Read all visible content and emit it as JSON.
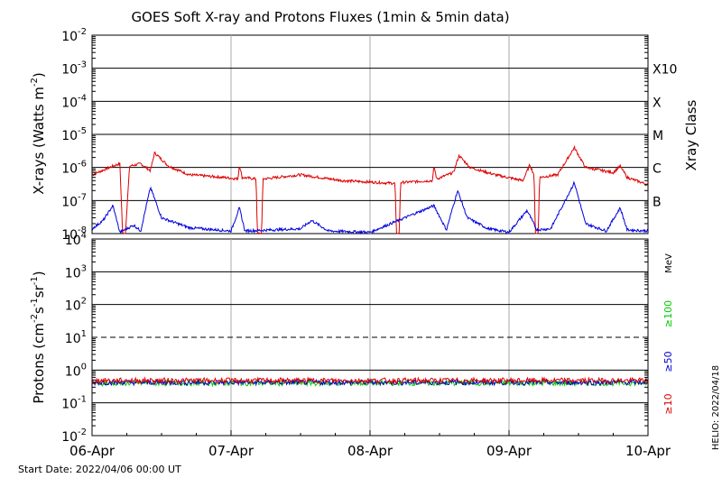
{
  "chart_data": {
    "title": "GOES Soft X-ray and Protons Fluxes   (1min & 5min data)",
    "footer_start": "Start Date: 2022/04/06 00:00 UT",
    "footer_side": "HELIO: 2022/04/18",
    "x_tick_labels": [
      "06-Apr",
      "07-Apr",
      "08-Apr",
      "09-Apr",
      "10-Apr"
    ],
    "xrays": {
      "type": "line",
      "ylabel": "X-rays (Watts m-2)",
      "y_scale": "log",
      "ylim_exponents": [
        -8,
        -2
      ],
      "class_axis_label": "Xray Class",
      "classes": [
        {
          "label": "X10",
          "exp": -3
        },
        {
          "label": "X",
          "exp": -4
        },
        {
          "label": "M",
          "exp": -5
        },
        {
          "label": "C",
          "exp": -6
        },
        {
          "label": "B",
          "exp": -7
        }
      ],
      "series": [
        {
          "color": "#dd0000",
          "points": [
            [
              0,
              6e-07
            ],
            [
              0.15,
              1.1e-06
            ],
            [
              0.2,
              1.3e-06
            ],
            [
              0.22,
              1e-08
            ],
            [
              0.24,
              1e-08
            ],
            [
              0.27,
              1.1e-06
            ],
            [
              0.35,
              1.3e-06
            ],
            [
              0.42,
              8e-07
            ],
            [
              0.45,
              2.8e-06
            ],
            [
              0.55,
              1.1e-06
            ],
            [
              0.7,
              6e-07
            ],
            [
              0.95,
              5e-07
            ],
            [
              1.05,
              4.5e-07
            ],
            [
              1.06,
              1.2e-06
            ],
            [
              1.08,
              5e-07
            ],
            [
              1.18,
              4.5e-07
            ],
            [
              1.19,
              1e-08
            ],
            [
              1.22,
              1e-08
            ],
            [
              1.23,
              4.5e-07
            ],
            [
              1.5,
              6e-07
            ],
            [
              1.8,
              4e-07
            ],
            [
              2.18,
              3.3e-07
            ],
            [
              2.19,
              1e-08
            ],
            [
              2.21,
              1e-08
            ],
            [
              2.22,
              3.5e-07
            ],
            [
              2.45,
              4e-07
            ],
            [
              2.46,
              1.1e-06
            ],
            [
              2.48,
              4.5e-07
            ],
            [
              2.6,
              7e-07
            ],
            [
              2.64,
              2.3e-06
            ],
            [
              2.72,
              1e-06
            ],
            [
              2.9,
              6e-07
            ],
            [
              3.1,
              4e-07
            ],
            [
              3.15,
              1.2e-06
            ],
            [
              3.18,
              6e-07
            ],
            [
              3.19,
              1e-08
            ],
            [
              3.21,
              1e-08
            ],
            [
              3.22,
              5e-07
            ],
            [
              3.35,
              6e-07
            ],
            [
              3.47,
              4e-06
            ],
            [
              3.55,
              1e-06
            ],
            [
              3.75,
              7e-07
            ],
            [
              3.8,
              1.1e-06
            ],
            [
              3.85,
              5e-07
            ],
            [
              4.0,
              3e-07
            ]
          ]
        },
        {
          "color": "#0000dd",
          "points": [
            [
              0,
              1.4e-08
            ],
            [
              0.08,
              2.5e-08
            ],
            [
              0.15,
              7e-08
            ],
            [
              0.2,
              1.1e-08
            ],
            [
              0.3,
              1.8e-08
            ],
            [
              0.35,
              1.2e-08
            ],
            [
              0.42,
              2.5e-07
            ],
            [
              0.5,
              3e-08
            ],
            [
              0.7,
              1.5e-08
            ],
            [
              1.0,
              1.2e-08
            ],
            [
              1.06,
              6e-08
            ],
            [
              1.1,
              1.2e-08
            ],
            [
              1.5,
              1.4e-08
            ],
            [
              1.58,
              2.5e-08
            ],
            [
              1.7,
              1.2e-08
            ],
            [
              2.0,
              1.1e-08
            ],
            [
              2.46,
              7e-08
            ],
            [
              2.55,
              1.3e-08
            ],
            [
              2.63,
              2e-07
            ],
            [
              2.7,
              3e-08
            ],
            [
              2.85,
              1.4e-08
            ],
            [
              3.0,
              1.1e-08
            ],
            [
              3.13,
              5e-08
            ],
            [
              3.2,
              1.3e-08
            ],
            [
              3.3,
              1.4e-08
            ],
            [
              3.47,
              3.5e-07
            ],
            [
              3.55,
              2e-08
            ],
            [
              3.7,
              1.2e-08
            ],
            [
              3.8,
              6e-08
            ],
            [
              3.85,
              1.3e-08
            ],
            [
              4.0,
              1.2e-08
            ]
          ]
        }
      ]
    },
    "protons": {
      "type": "line",
      "ylabel": "Protons (cm-2s-1sr-1)",
      "y_scale": "log",
      "ylim_exponents": [
        -2,
        4
      ],
      "threshold_exp": 1,
      "units": "MeV",
      "series": [
        {
          "name": "≥100",
          "color": "#00cc00",
          "level": 0.4
        },
        {
          "name": "≥50",
          "color": "#0000cc",
          "level": 0.42
        },
        {
          "name": "≥10",
          "color": "#dd0000",
          "level": 0.48
        }
      ]
    }
  }
}
